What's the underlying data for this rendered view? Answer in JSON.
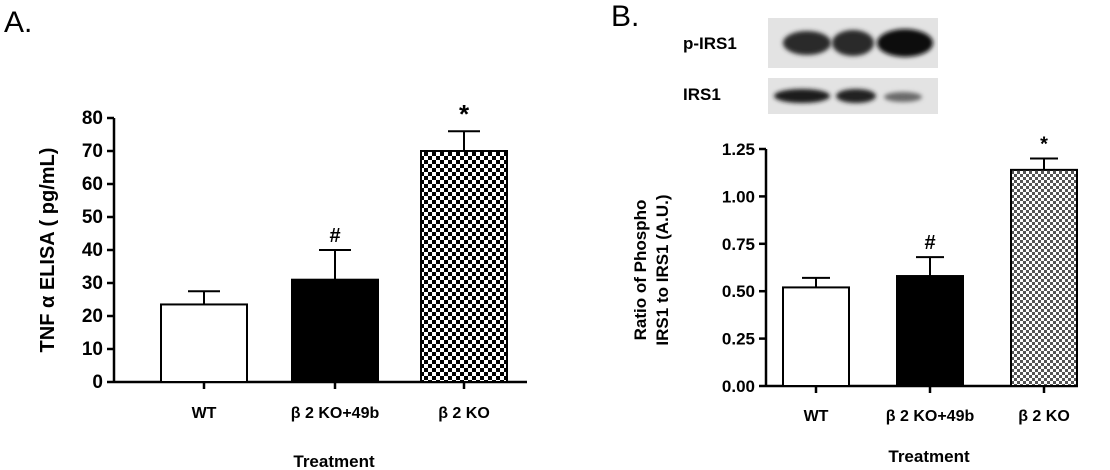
{
  "panel_a": {
    "label": "A.",
    "chart_data": {
      "type": "bar",
      "categories": [
        "WT",
        "β 2 KO+49b",
        "β 2 KO"
      ],
      "values": [
        23.5,
        31,
        70
      ],
      "errors": [
        4,
        9,
        6
      ],
      "significance": [
        "",
        "#",
        "*"
      ],
      "fills": [
        "white",
        "black",
        "checkered"
      ],
      "title": "",
      "xlabel": "Treatment",
      "ylabel": "TNF α ELISA ( pg/mL)",
      "ylim": [
        0,
        80
      ],
      "yticks": [
        "0",
        "10",
        "20",
        "30",
        "40",
        "50",
        "60",
        "70",
        "80"
      ],
      "grid": false
    }
  },
  "panel_b": {
    "label": "B.",
    "blot": {
      "rows": [
        "p-IRS1",
        "IRS1"
      ],
      "lanes": 3
    },
    "chart_data": {
      "type": "bar",
      "categories": [
        "WT",
        "β 2 KO+49b",
        "β 2 KO"
      ],
      "values": [
        0.52,
        0.58,
        1.14
      ],
      "errors": [
        0.05,
        0.1,
        0.06
      ],
      "significance": [
        "",
        "#",
        "*"
      ],
      "fills": [
        "white",
        "black",
        "checkered"
      ],
      "title": "",
      "xlabel": "Treatment",
      "ylabel_lines": [
        "Ratio of Phospho",
        "IRS1 to IRS1 (A.U.)"
      ],
      "ylim": [
        0,
        1.25
      ],
      "yticks": [
        "0.00",
        "0.25",
        "0.50",
        "0.75",
        "1.00",
        "1.25"
      ],
      "grid": false
    }
  },
  "colors": {
    "axis": "#000000",
    "bar_dark": "#000000",
    "bar_light": "#ffffff"
  }
}
